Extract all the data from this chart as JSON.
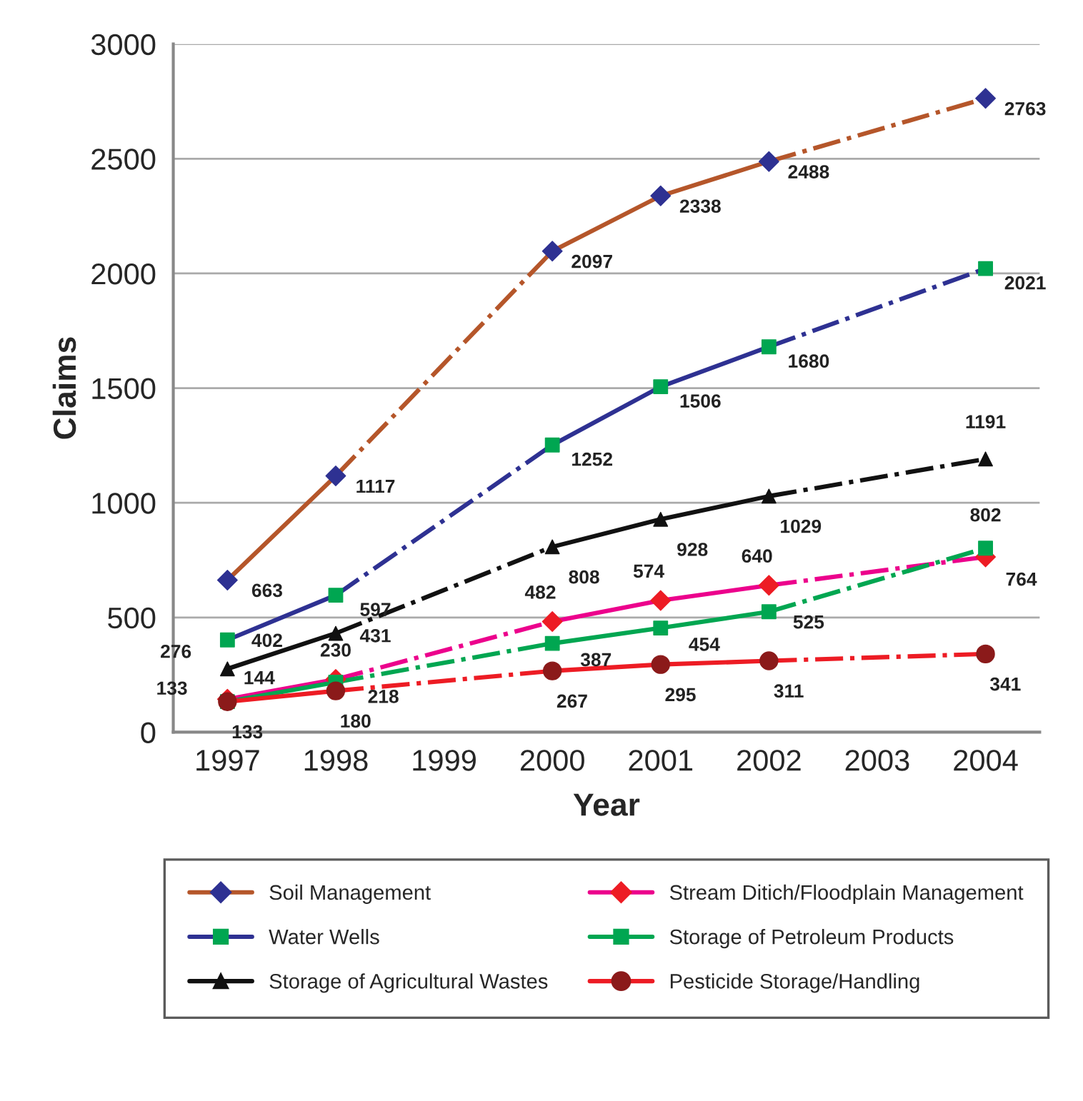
{
  "chart_data": {
    "type": "line",
    "xlabel": "Year",
    "ylabel": "Claims",
    "categories": [
      "1997",
      "1998",
      "1999",
      "2000",
      "2001",
      "2002",
      "2003",
      "2004"
    ],
    "ylim": [
      0,
      3000
    ],
    "yticks": [
      0,
      500,
      1000,
      1500,
      2000,
      2500,
      3000
    ],
    "grid": "y",
    "legend": "bottom",
    "data_labels": true,
    "line_style": "solid",
    "series": [
      {
        "name": "Soil Management",
        "color": "#b5562a",
        "marker": "diamond",
        "colors": [
          "#2e3192",
          "#2e3192",
          "#2e3192",
          "#2e3192",
          "#2e3192",
          "#2e3192",
          "#2e3192",
          "#2e3192"
        ],
        "values": [
          663,
          1117,
          null,
          2097,
          2338,
          2488,
          null,
          2763
        ]
      },
      {
        "name": "Water Wells",
        "color": "#2e3192",
        "marker": "square",
        "colors": [
          "#00a651",
          "#00a651",
          "#00a651",
          "#00a651",
          "#00a651",
          "#00a651",
          "#00a651",
          "#00a651"
        ],
        "values": [
          402,
          597,
          null,
          1252,
          1506,
          1680,
          null,
          2021
        ]
      },
      {
        "name": "Storage of Agricultural Wastes",
        "color": "#111111",
        "marker": "triangle",
        "colors": [
          "#111111",
          "#111111",
          "#111111",
          "#111111",
          "#111111",
          "#111111",
          "#111111",
          "#111111"
        ],
        "values": [
          276,
          431,
          null,
          808,
          928,
          1029,
          null,
          1191
        ]
      },
      {
        "name": "Stream Ditich/Floodplain Management",
        "color": "#ec008c",
        "marker": "diamond",
        "colors": [
          "#ed1c24",
          "#ed1c24",
          "#ed1c24",
          "#ed1c24",
          "#ed1c24",
          "#ed1c24",
          "#ed1c24",
          "#ed1c24"
        ],
        "values": [
          144,
          230,
          null,
          482,
          574,
          640,
          null,
          764
        ]
      },
      {
        "name": "Storage of Petroleum Products",
        "color": "#00a651",
        "marker": "square",
        "colors": [
          "#00a651",
          "#00a651",
          "#00a651",
          "#00a651",
          "#00a651",
          "#00a651",
          "#00a651",
          "#00a651"
        ],
        "values": [
          133,
          218,
          null,
          387,
          454,
          525,
          null,
          802
        ]
      },
      {
        "name": "Pesticide Storage/Handling",
        "color": "#ed1c24",
        "marker": "circle",
        "colors": [
          "#8b1a1a",
          "#8b1a1a",
          "#8b1a1a",
          "#8b1a1a",
          "#8b1a1a",
          "#8b1a1a",
          "#8b1a1a",
          "#8b1a1a"
        ],
        "values": [
          133,
          180,
          null,
          267,
          295,
          311,
          null,
          341
        ]
      }
    ]
  }
}
